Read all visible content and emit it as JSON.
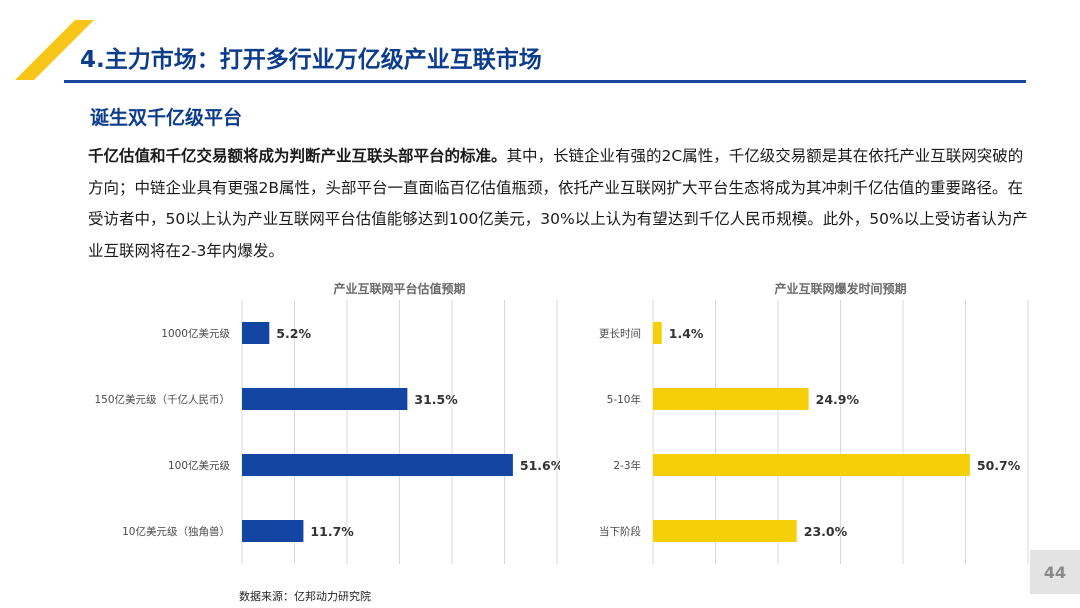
{
  "header": {
    "title": "4.主力市场：打开多行业万亿级产业互联市场",
    "subtitle": "诞生双千亿级平台"
  },
  "paragraph": {
    "lead": "千亿估值和千亿交易额将成为判断产业互联头部平台的标准。",
    "rest": "其中，长链企业有强的2C属性，千亿级交易额是其在依托产业互联网突破的方向；中链企业具有更强2B属性，头部平台一直面临百亿估值瓶颈，依托产业互联网扩大平台生态将成为其冲刺千亿估值的重要路径。在受访者中，50以上认为产业互联网平台估值能够达到100亿美元，30%以上认为有望达到千亿人民币规模。此外，50%以上受访者认为产业互联网将在2-3年内爆发。"
  },
  "colors": {
    "brand_blue": "#0c3c8c",
    "bar_blue": "#1346a3",
    "bar_yellow": "#f5cf0a",
    "deco_yellow": "#f5c518"
  },
  "chart_data": [
    {
      "type": "bar",
      "orientation": "horizontal",
      "title": "产业互联网平台估值预期",
      "categories": [
        "1000亿美元级",
        "150亿美元级（千亿人民币）",
        "100亿美元级",
        "10亿美元级（独角兽）"
      ],
      "values": [
        5.2,
        31.5,
        51.6,
        11.7
      ],
      "labels": [
        "5.2%",
        "31.5%",
        "51.6%",
        "11.7%"
      ],
      "unit": "%",
      "xlim": [
        0,
        60
      ],
      "grid": true
    },
    {
      "type": "bar",
      "orientation": "horizontal",
      "title": "产业互联网爆发时间预期",
      "categories": [
        "更长时间",
        "5-10年",
        "2-3年",
        "当下阶段"
      ],
      "values": [
        1.4,
        24.9,
        50.7,
        23.0
      ],
      "labels": [
        "1.4%",
        "24.9%",
        "50.7%",
        "23.0%"
      ],
      "unit": "%",
      "xlim": [
        0,
        60
      ],
      "grid": true
    }
  ],
  "footer": {
    "source": "数据来源：亿邦动力研究院",
    "page_number": "44"
  }
}
